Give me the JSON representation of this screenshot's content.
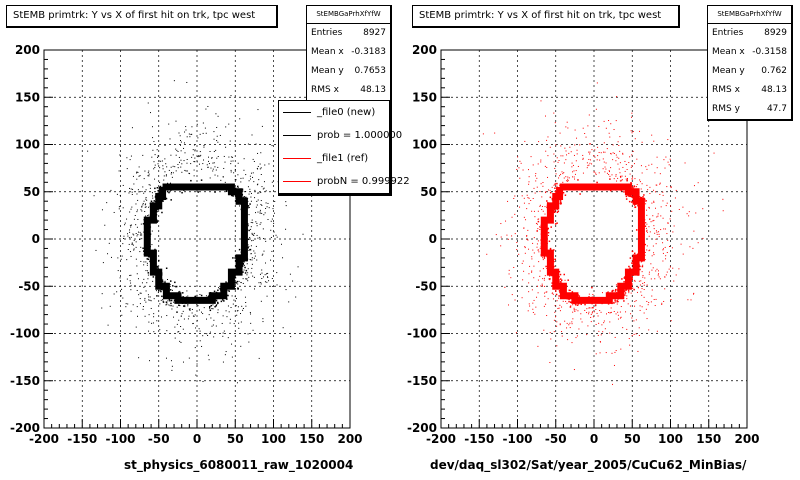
{
  "colors": {
    "new": "#000000",
    "ref": "#ff0000",
    "grid": "#000000"
  },
  "panels": [
    {
      "title": "StEMB primtrk: Y vs X of first hit on trk, tpc west",
      "stats": {
        "name": "StEMBGaPrhXfYfW",
        "rows": [
          {
            "label": "Entries",
            "value": "8927"
          },
          {
            "label": "Mean x",
            "value": "-0.3183"
          },
          {
            "label": "Mean y",
            "value": "0.7653"
          },
          {
            "label": "RMS x",
            "value": "48.13"
          }
        ]
      },
      "xlabel": "st_physics_6080011_raw_1020004"
    },
    {
      "title": "StEMB primtrk: Y vs X of first hit on trk, tpc west",
      "stats": {
        "name": "StEMBGaPrhXfYfW",
        "rows": [
          {
            "label": "Entries",
            "value": "8929"
          },
          {
            "label": "Mean x",
            "value": "-0.3158"
          },
          {
            "label": "Mean y",
            "value": "0.762"
          },
          {
            "label": "RMS x",
            "value": "48.13"
          },
          {
            "label": "RMS y",
            "value": "47.7"
          }
        ]
      },
      "xlabel": "dev/daq_sl302/Sat/year_2005/CuCu62_MinBias/"
    }
  ],
  "legend": [
    {
      "label": "_file0 (new)",
      "color": "#000000"
    },
    {
      "label": "prob = 1.000000",
      "color": "#000000"
    },
    {
      "label": "_file1 (ref)",
      "color": "#ff0000"
    },
    {
      "label": "probN = 0.999922",
      "color": "#ff0000"
    }
  ],
  "chart_data": [
    {
      "type": "scatter",
      "title": "StEMB primtrk: Y vs X of first hit on trk, tpc west",
      "xlabel": "st_physics_6080011_raw_1020004",
      "ylabel": "",
      "xlim": [
        -200,
        200
      ],
      "ylim": [
        -200,
        200
      ],
      "xticks": [
        -200,
        -150,
        -100,
        -50,
        0,
        50,
        100,
        150,
        200
      ],
      "yticks": [
        -200,
        -150,
        -100,
        -50,
        0,
        50,
        100,
        150,
        200
      ],
      "grid": true,
      "series": [
        {
          "name": "_file0 (new)",
          "color": "#000000",
          "entries": 8927,
          "mean_x": -0.3183,
          "mean_y": 0.7653,
          "rms_x": 48.13
        }
      ]
    },
    {
      "type": "scatter",
      "title": "StEMB primtrk: Y vs X of first hit on trk, tpc west",
      "xlabel": "dev/daq_sl302/Sat/year_2005/CuCu62_MinBias/",
      "ylabel": "",
      "xlim": [
        -200,
        200
      ],
      "ylim": [
        -200,
        200
      ],
      "xticks": [
        -200,
        -150,
        -100,
        -50,
        0,
        50,
        100,
        150,
        200
      ],
      "yticks": [
        -200,
        -150,
        -100,
        -50,
        0,
        50,
        100,
        150,
        200
      ],
      "grid": true,
      "series": [
        {
          "name": "_file1 (ref)",
          "color": "#ff0000",
          "entries": 8929,
          "mean_x": -0.3158,
          "mean_y": 0.762,
          "rms_x": 48.13,
          "rms_y": 47.7
        }
      ]
    }
  ]
}
